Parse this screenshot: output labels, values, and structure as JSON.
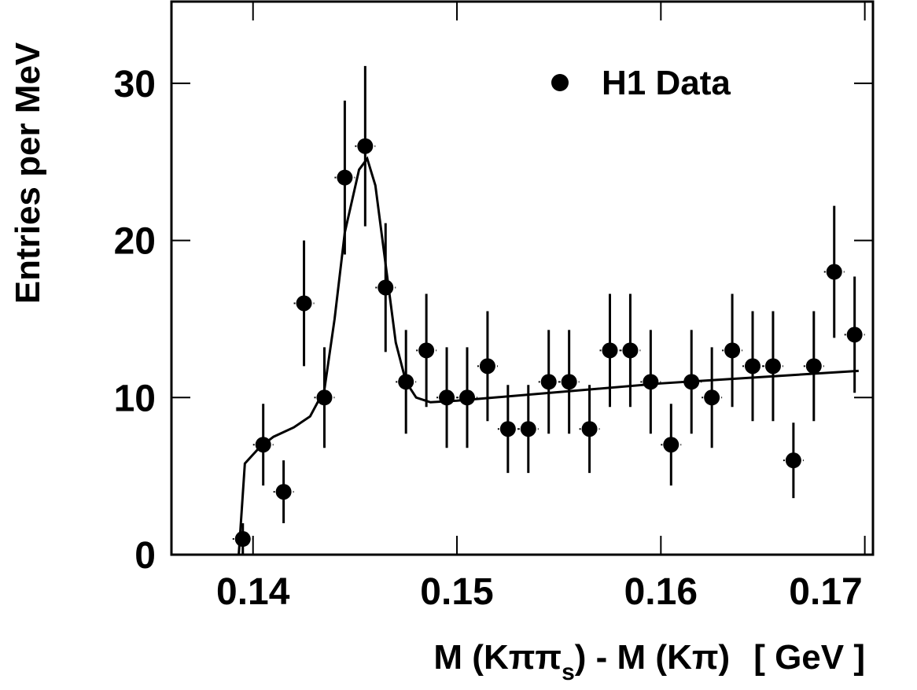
{
  "chart_data": {
    "type": "scatter",
    "x_label_parts": [
      "M (Kππ",
      "s",
      ") - M (Kπ)",
      "[ GeV ]"
    ],
    "y_label": "Entries per MeV",
    "xlim": [
      0.136,
      0.1704
    ],
    "ylim": [
      0,
      35.2
    ],
    "xticks": [
      0.14,
      0.15,
      0.16,
      0.17
    ],
    "yticks": [
      0,
      10,
      20,
      30
    ],
    "legend": "top-right",
    "series": [
      {
        "name": "H1 Data",
        "color": "#000000",
        "x": [
          0.1395,
          0.1405,
          0.1415,
          0.1425,
          0.1435,
          0.1445,
          0.1455,
          0.1465,
          0.1475,
          0.1485,
          0.1495,
          0.1505,
          0.1515,
          0.1525,
          0.1535,
          0.1545,
          0.1555,
          0.1565,
          0.1575,
          0.1585,
          0.1595,
          0.1605,
          0.1615,
          0.1625,
          0.1635,
          0.1645,
          0.1655,
          0.1665,
          0.1675,
          0.1685,
          0.1695
        ],
        "values": [
          1,
          7,
          4,
          16,
          10,
          24,
          26,
          17,
          11,
          13,
          10,
          10,
          12,
          8,
          8,
          11,
          11,
          8,
          13,
          13,
          11,
          7,
          11,
          10,
          13,
          12,
          12,
          6,
          12,
          18,
          14
        ],
        "errors": [
          1,
          2.6,
          2,
          4,
          3.2,
          4.9,
          5.1,
          4.1,
          3.3,
          3.6,
          3.2,
          3.2,
          3.5,
          2.8,
          2.8,
          3.3,
          3.3,
          2.8,
          3.6,
          3.6,
          3.3,
          2.6,
          3.3,
          3.2,
          3.6,
          3.5,
          3.5,
          2.4,
          3.5,
          4.2,
          3.7
        ],
        "bin_width": 0.001
      }
    ],
    "fit": {
      "color": "#000000",
      "x": [
        0.136,
        0.1393,
        0.1396,
        0.1403,
        0.141,
        0.142,
        0.1428,
        0.1435,
        0.144,
        0.1445,
        0.1452,
        0.1456,
        0.146,
        0.1465,
        0.147,
        0.1475,
        0.148,
        0.1487,
        0.15,
        0.16,
        0.1697
      ],
      "values": [
        0,
        0,
        5.8,
        6.8,
        7.5,
        8.1,
        8.8,
        10.5,
        15,
        20.5,
        24.5,
        25.2,
        23.5,
        18.5,
        13.5,
        11,
        10,
        9.7,
        9.8,
        10.9,
        11.7
      ]
    }
  }
}
